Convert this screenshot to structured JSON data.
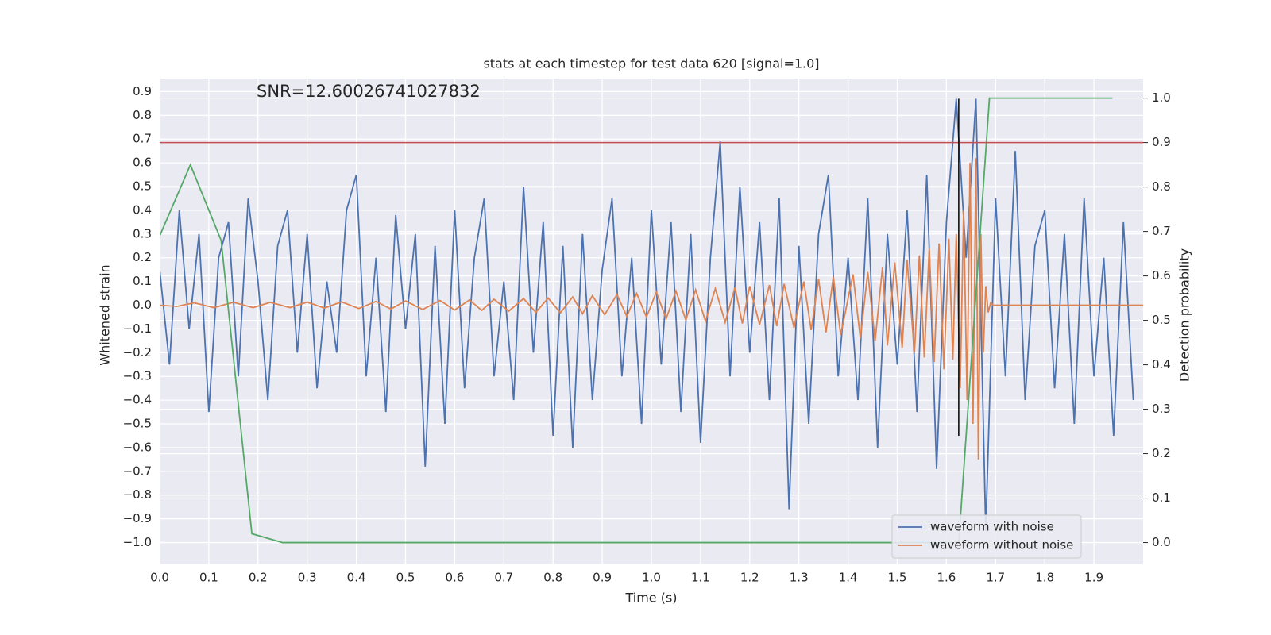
{
  "chart_data": {
    "type": "line",
    "title": "stats at each timestep for test data 620 [signal=1.0]",
    "annotation": "SNR=12.60026741027832",
    "x_label": "Time (s)",
    "y_label": "Whitened strain",
    "y2_label": "Detection probability",
    "grid": true,
    "legend": "lower right",
    "xlim": [
      0,
      2.0
    ],
    "ylim": [
      -1.092,
      0.955
    ],
    "y2lim": [
      -0.049,
      1.044
    ],
    "xticks": [
      {
        "value": 0,
        "label": "0.0"
      },
      0.1,
      0.2,
      0.3,
      0.4,
      0.5,
      0.6,
      0.7,
      0.8,
      0.9,
      {
        "value": 1,
        "label": "1.0"
      },
      1.1,
      1.2,
      1.3,
      1.4,
      1.5,
      1.6,
      1.7,
      1.8,
      1.9
    ],
    "yticks": [
      {
        "value": -1,
        "label": "−1.0"
      },
      {
        "value": -0.9,
        "label": "−0.9"
      },
      {
        "value": -0.8,
        "label": "−0.8"
      },
      {
        "value": -0.7,
        "label": "−0.7"
      },
      {
        "value": -0.6,
        "label": "−0.6"
      },
      {
        "value": -0.5,
        "label": "−0.5"
      },
      {
        "value": -0.4,
        "label": "−0.4"
      },
      {
        "value": -0.3,
        "label": "−0.3"
      },
      {
        "value": -0.2,
        "label": "−0.2"
      },
      {
        "value": -0.1,
        "label": "−0.1"
      },
      {
        "value": 0,
        "label": "0.0"
      },
      0.1,
      0.2,
      0.3,
      0.4,
      0.5,
      0.6,
      0.7,
      0.8,
      0.9
    ],
    "y2ticks": [
      {
        "value": 0,
        "label": "0.0"
      },
      0.1,
      0.2,
      0.3,
      0.4,
      0.5,
      0.6,
      0.7,
      0.8,
      0.9,
      {
        "value": 1,
        "label": "1.0"
      }
    ],
    "series": [
      {
        "name": "waveform with noise",
        "color": "#4c72b0",
        "x": [
          0,
          0.02,
          0.04,
          0.06,
          0.08,
          0.1,
          0.12,
          0.14,
          0.16,
          0.18,
          0.2,
          0.22,
          0.24,
          0.26,
          0.28,
          0.3,
          0.32,
          0.34,
          0.36,
          0.38,
          0.4,
          0.42,
          0.44,
          0.46,
          0.48,
          0.5,
          0.52,
          0.54,
          0.56,
          0.58,
          0.6,
          0.62,
          0.64,
          0.66,
          0.68,
          0.7,
          0.72,
          0.74,
          0.76,
          0.78,
          0.8,
          0.82,
          0.84,
          0.86,
          0.88,
          0.9,
          0.92,
          0.94,
          0.96,
          0.98,
          1,
          1.02,
          1.04,
          1.06,
          1.08,
          1.1,
          1.12,
          1.14,
          1.16,
          1.18,
          1.2,
          1.22,
          1.24,
          1.26,
          1.28,
          1.3,
          1.32,
          1.34,
          1.36,
          1.38,
          1.4,
          1.42,
          1.44,
          1.46,
          1.48,
          1.5,
          1.52,
          1.54,
          1.56,
          1.58,
          1.6,
          1.62,
          1.64,
          1.66,
          1.68,
          1.7,
          1.72,
          1.74,
          1.76,
          1.78,
          1.8,
          1.82,
          1.84,
          1.86,
          1.88,
          1.9,
          1.92,
          1.94,
          1.96,
          1.98
        ],
        "values": [
          0.15,
          -0.25,
          0.4,
          -0.1,
          0.3,
          -0.45,
          0.2,
          0.35,
          -0.3,
          0.45,
          0.1,
          -0.4,
          0.25,
          0.4,
          -0.2,
          0.3,
          -0.35,
          0.1,
          -0.2,
          0.4,
          0.55,
          -0.3,
          0.2,
          -0.45,
          0.38,
          -0.1,
          0.3,
          -0.68,
          0.25,
          -0.5,
          0.4,
          -0.35,
          0.2,
          0.45,
          -0.3,
          0.1,
          -0.4,
          0.5,
          -0.2,
          0.35,
          -0.55,
          0.25,
          -0.6,
          0.3,
          -0.4,
          0.15,
          0.45,
          -0.3,
          0.2,
          -0.5,
          0.4,
          -0.25,
          0.35,
          -0.45,
          0.3,
          -0.58,
          0.2,
          0.69,
          -0.3,
          0.5,
          -0.2,
          0.35,
          -0.4,
          0.45,
          -0.86,
          0.25,
          -0.5,
          0.3,
          0.55,
          -0.3,
          0.2,
          -0.4,
          0.45,
          -0.6,
          0.3,
          -0.25,
          0.4,
          -0.45,
          0.55,
          -0.69,
          0.35,
          0.87,
          0.2,
          0.87,
          -0.95,
          0.45,
          -0.3,
          0.65,
          -0.4,
          0.25,
          0.4,
          -0.35,
          0.3,
          -0.5,
          0.45,
          -0.3,
          0.2,
          -0.55,
          0.35,
          -0.4
        ]
      },
      {
        "name": "waveform without noise",
        "color": "#dd8452",
        "x": [
          0,
          0.035,
          0.07,
          0.11,
          0.15,
          0.19,
          0.225,
          0.265,
          0.3,
          0.335,
          0.37,
          0.405,
          0.44,
          0.47,
          0.5,
          0.535,
          0.57,
          0.6,
          0.63,
          0.655,
          0.68,
          0.71,
          0.74,
          0.765,
          0.79,
          0.815,
          0.84,
          0.86,
          0.88,
          0.905,
          0.93,
          0.95,
          0.97,
          0.99,
          1.01,
          1.03,
          1.05,
          1.07,
          1.09,
          1.11,
          1.13,
          1.15,
          1.17,
          1.185,
          1.2,
          1.22,
          1.24,
          1.255,
          1.27,
          1.29,
          1.31,
          1.325,
          1.34,
          1.355,
          1.37,
          1.385,
          1.41,
          1.425,
          1.44,
          1.455,
          1.47,
          1.48,
          1.495,
          1.51,
          1.52,
          1.535,
          1.545,
          1.555,
          1.565,
          1.575,
          1.585,
          1.595,
          1.605,
          1.613,
          1.62,
          1.628,
          1.635,
          1.642,
          1.648,
          1.654,
          1.66,
          1.665,
          1.67,
          1.675,
          1.68,
          1.685,
          1.69,
          1.695,
          2.0
        ],
        "values": [
          0,
          -0.005,
          0.01,
          -0.01,
          0.012,
          -0.01,
          0.012,
          -0.01,
          0.013,
          -0.012,
          0.014,
          -0.014,
          0.016,
          -0.016,
          0.018,
          -0.018,
          0.02,
          -0.02,
          0.022,
          -0.022,
          0.025,
          -0.025,
          0.028,
          -0.03,
          0.03,
          -0.032,
          0.035,
          -0.036,
          0.04,
          -0.04,
          0.045,
          -0.047,
          0.05,
          -0.05,
          0.055,
          -0.057,
          0.06,
          -0.062,
          0.065,
          -0.067,
          0.07,
          -0.072,
          0.075,
          -0.077,
          0.08,
          -0.082,
          0.085,
          -0.088,
          0.09,
          -0.095,
          0.1,
          -0.105,
          0.11,
          -0.115,
          0.12,
          -0.125,
          0.13,
          -0.14,
          0.14,
          -0.15,
          0.16,
          -0.17,
          0.18,
          -0.18,
          0.19,
          -0.2,
          0.21,
          -0.22,
          0.24,
          -0.24,
          0.26,
          -0.27,
          0.28,
          -0.23,
          0.3,
          -0.35,
          0.4,
          -0.4,
          0.6,
          -0.5,
          0.62,
          -0.65,
          0.3,
          -0.2,
          0.08,
          -0.03,
          0.01,
          0,
          0
        ]
      },
      {
        "color": "#55a868",
        "axis": "y2",
        "x": [
          0,
          0.0625,
          0.125,
          0.1875,
          0.25,
          1.625,
          1.6875,
          1.9375
        ],
        "values": [
          0.69,
          0.85,
          0.68,
          0.02,
          0,
          0,
          1.0,
          1.0
        ]
      }
    ],
    "hlines": [
      {
        "axis": "y2",
        "value": 0.9,
        "color": "#c44e52"
      }
    ],
    "vlines": [
      {
        "x": 1.625,
        "y0": -0.55,
        "y1": 0.87,
        "color": "#000000"
      }
    ]
  }
}
